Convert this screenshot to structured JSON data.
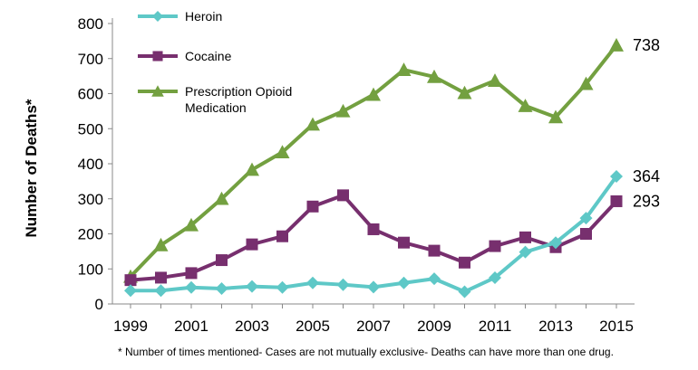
{
  "chart_data": {
    "type": "line",
    "ylabel": "Number of Deaths*",
    "xlabel": "",
    "ylim": [
      0,
      800
    ],
    "yticks": [
      0,
      100,
      200,
      300,
      400,
      500,
      600,
      700,
      800
    ],
    "xticks": [
      1999,
      2001,
      2003,
      2005,
      2007,
      2009,
      2011,
      2013,
      2015
    ],
    "x": [
      1999,
      2000,
      2001,
      2002,
      2003,
      2004,
      2005,
      2006,
      2007,
      2008,
      2009,
      2010,
      2011,
      2012,
      2013,
      2014,
      2015
    ],
    "grid": false,
    "legend_position": "top-left",
    "series": [
      {
        "name": "Heroin",
        "color": "#5ec8c7",
        "marker": "diamond",
        "values": [
          38,
          38,
          47,
          44,
          50,
          47,
          60,
          55,
          48,
          60,
          72,
          35,
          75,
          148,
          175,
          245,
          364
        ],
        "end_label": "364"
      },
      {
        "name": "Cocaine",
        "color": "#772f6e",
        "marker": "square",
        "values": [
          68,
          75,
          88,
          125,
          170,
          193,
          278,
          310,
          213,
          175,
          152,
          118,
          165,
          190,
          162,
          200,
          293
        ],
        "end_label": "293"
      },
      {
        "name": "Prescription Opioid Medication",
        "color": "#73a040",
        "marker": "triangle",
        "values": [
          78,
          168,
          225,
          300,
          383,
          433,
          512,
          550,
          597,
          668,
          648,
          602,
          637,
          565,
          533,
          628,
          738
        ],
        "end_label": "738"
      }
    ],
    "legend_lines": [
      [
        "Heroin"
      ],
      [
        "Cocaine"
      ],
      [
        "Prescription Opioid",
        "Medication"
      ]
    ],
    "footnote": "* Number of times mentioned- Cases are not mutually exclusive- Deaths can have more than one drug."
  }
}
